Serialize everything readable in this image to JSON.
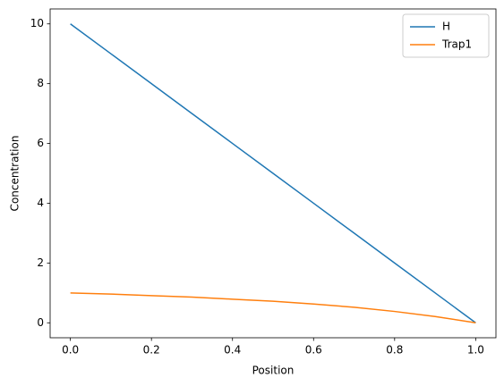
{
  "chart_data": {
    "type": "line",
    "x_label": "Position",
    "y_label": "Concentration",
    "x": [
      0,
      0.1,
      0.2,
      0.3,
      0.4,
      0.5,
      0.6,
      0.7,
      0.8,
      0.9,
      1.0
    ],
    "series": [
      {
        "name": "H",
        "color": "#1f77b4",
        "values": [
          10,
          9,
          8,
          7,
          6,
          5,
          4,
          3,
          2,
          1,
          0
        ]
      },
      {
        "name": "Trap1",
        "color": "#ff7f0e",
        "values": [
          1.0,
          0.96,
          0.91,
          0.86,
          0.79,
          0.72,
          0.63,
          0.52,
          0.38,
          0.21,
          0
        ]
      }
    ],
    "xlim": [
      -0.05,
      1.05
    ],
    "ylim": [
      -0.5,
      10.5
    ],
    "xticks": [
      {
        "value": 0,
        "label": "0.0"
      },
      {
        "value": 0.2,
        "label": "0.2"
      },
      {
        "value": 0.4,
        "label": "0.4"
      },
      {
        "value": 0.6,
        "label": "0.6"
      },
      {
        "value": 0.8,
        "label": "0.8"
      },
      {
        "value": 1.0,
        "label": "1.0"
      }
    ],
    "yticks": [
      0,
      2,
      4,
      6,
      8,
      10
    ],
    "legend": "upper right",
    "grid": false
  }
}
